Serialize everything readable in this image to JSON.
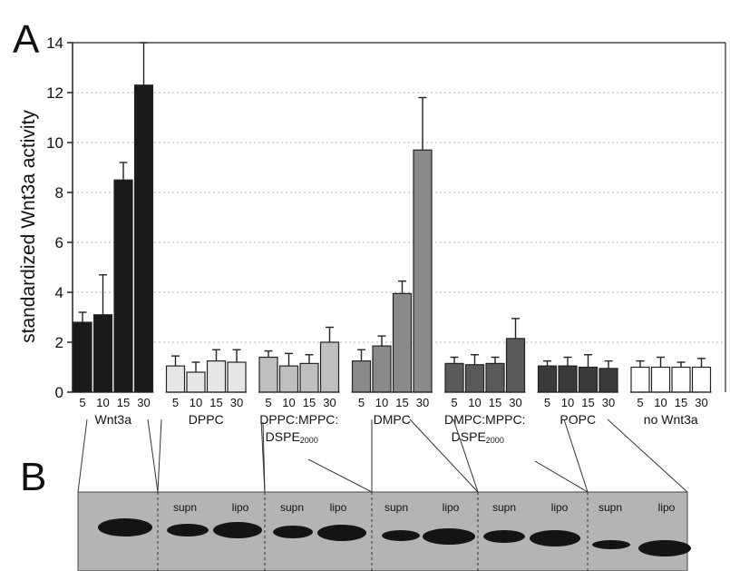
{
  "panel_a_letter": "A",
  "panel_b_letter": "B",
  "chart_data": {
    "type": "bar",
    "ylabel": "standardized Wnt3a activity",
    "ylim": [
      0,
      14
    ],
    "yticks": [
      "0",
      "2",
      "4",
      "6",
      "8",
      "10",
      "12",
      "14"
    ],
    "grid": "horizontal dashed",
    "groups": [
      {
        "name": "Wnt3a",
        "subscript": "",
        "fill": "#1a1a1a",
        "categories": [
          "5",
          "10",
          "15",
          "30"
        ],
        "values": [
          2.8,
          3.1,
          8.5,
          12.3
        ],
        "errors": [
          0.4,
          1.6,
          0.7,
          1.7
        ]
      },
      {
        "name": "DPPC",
        "subscript": "",
        "fill": "#e6e6e6",
        "categories": [
          "5",
          "10",
          "15",
          "30"
        ],
        "values": [
          1.05,
          0.8,
          1.25,
          1.2
        ],
        "errors": [
          0.4,
          0.4,
          0.45,
          0.5
        ]
      },
      {
        "name": "DPPC:MPPC:",
        "name2": "DSPE",
        "subscript": "2000",
        "fill": "#bfbfbf",
        "categories": [
          "5",
          "10",
          "15",
          "30"
        ],
        "values": [
          1.4,
          1.05,
          1.15,
          2.0
        ],
        "errors": [
          0.25,
          0.5,
          0.35,
          0.6
        ]
      },
      {
        "name": "DMPC",
        "subscript": "",
        "fill": "#8a8a8a",
        "categories": [
          "5",
          "10",
          "15",
          "30"
        ],
        "values": [
          1.25,
          1.85,
          3.95,
          9.7
        ],
        "errors": [
          0.45,
          0.4,
          0.5,
          2.1
        ]
      },
      {
        "name": "DMPC:MPPC:",
        "name2": "DSPE",
        "subscript": "2000",
        "fill": "#5a5a5a",
        "categories": [
          "5",
          "10",
          "15",
          "30"
        ],
        "values": [
          1.15,
          1.1,
          1.15,
          2.15
        ],
        "errors": [
          0.25,
          0.4,
          0.25,
          0.8
        ]
      },
      {
        "name": "POPC",
        "subscript": "",
        "fill": "#3a3a3a",
        "categories": [
          "5",
          "10",
          "15",
          "30"
        ],
        "values": [
          1.05,
          1.05,
          1.0,
          0.95
        ],
        "errors": [
          0.2,
          0.35,
          0.5,
          0.3
        ]
      },
      {
        "name": "no Wnt3a",
        "subscript": "",
        "fill": "#ffffff",
        "categories": [
          "5",
          "10",
          "15",
          "30"
        ],
        "values": [
          1.0,
          1.0,
          1.0,
          1.0
        ],
        "errors": [
          0.25,
          0.4,
          0.2,
          0.35
        ]
      }
    ]
  },
  "blot": {
    "lane_labels": [
      "supn",
      "lipo",
      "supn",
      "lipo",
      "supn",
      "lipo",
      "supn",
      "lipo",
      "supn",
      "lipo"
    ]
  }
}
